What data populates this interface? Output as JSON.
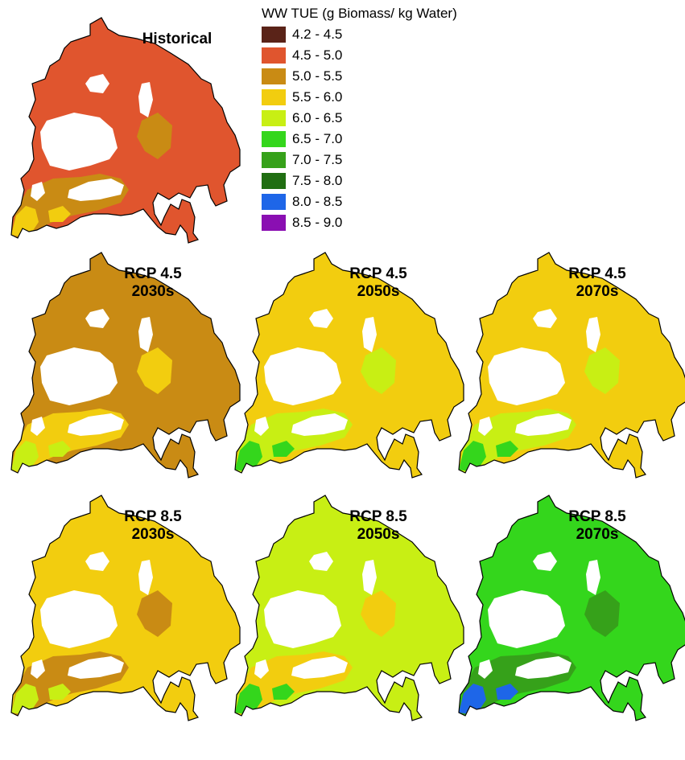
{
  "legend": {
    "title": "WW TUE (g Biomass/ kg Water)",
    "classes": [
      {
        "label": "4.2 - 4.5",
        "color": "#5a2318"
      },
      {
        "label": "4.5 - 5.0",
        "color": "#e0552e"
      },
      {
        "label": "5.0 - 5.5",
        "color": "#c98b14"
      },
      {
        "label": "5.5 - 6.0",
        "color": "#f2cd0f"
      },
      {
        "label": "6.0 - 6.5",
        "color": "#c8ef14"
      },
      {
        "label": "6.5 - 7.0",
        "color": "#34d61c"
      },
      {
        "label": "7.0 - 7.5",
        "color": "#36a11a"
      },
      {
        "label": "7.5 - 8.0",
        "color": "#206e12"
      },
      {
        "label": "8.0 - 8.5",
        "color": "#1e66e8"
      },
      {
        "label": "8.5 - 9.0",
        "color": "#8a0fb2"
      }
    ]
  },
  "maps": [
    {
      "id": "historical",
      "title_lines": [
        "Historical"
      ],
      "dominant_class": "4.5 - 5.0",
      "secondary_class": "5.0 - 5.5",
      "accent_class": "5.5 - 6.0"
    },
    {
      "id": "rcp45-2030s",
      "title_lines": [
        "RCP 4.5",
        "2030s"
      ],
      "dominant_class": "5.0 - 5.5",
      "secondary_class": "5.5 - 6.0",
      "accent_class": "6.0 - 6.5"
    },
    {
      "id": "rcp45-2050s",
      "title_lines": [
        "RCP 4.5",
        "2050s"
      ],
      "dominant_class": "5.5 - 6.0",
      "secondary_class": "6.0 - 6.5",
      "accent_class": "6.5 - 7.0"
    },
    {
      "id": "rcp45-2070s",
      "title_lines": [
        "RCP 4.5",
        "2070s"
      ],
      "dominant_class": "5.5 - 6.0",
      "secondary_class": "6.0 - 6.5",
      "accent_class": "6.5 - 7.0"
    },
    {
      "id": "rcp85-2030s",
      "title_lines": [
        "RCP 8.5",
        "2030s"
      ],
      "dominant_class": "5.5 - 6.0",
      "secondary_class": "5.0 - 5.5",
      "accent_class": "6.0 - 6.5"
    },
    {
      "id": "rcp85-2050s",
      "title_lines": [
        "RCP 8.5",
        "2050s"
      ],
      "dominant_class": "6.0 - 6.5",
      "secondary_class": "5.5 - 6.0",
      "accent_class": "6.5 - 7.0"
    },
    {
      "id": "rcp85-2070s",
      "title_lines": [
        "RCP 8.5",
        "2070s"
      ],
      "dominant_class": "6.5 - 7.0",
      "secondary_class": "7.0 - 7.5",
      "accent_class": "8.0 - 8.5"
    }
  ]
}
